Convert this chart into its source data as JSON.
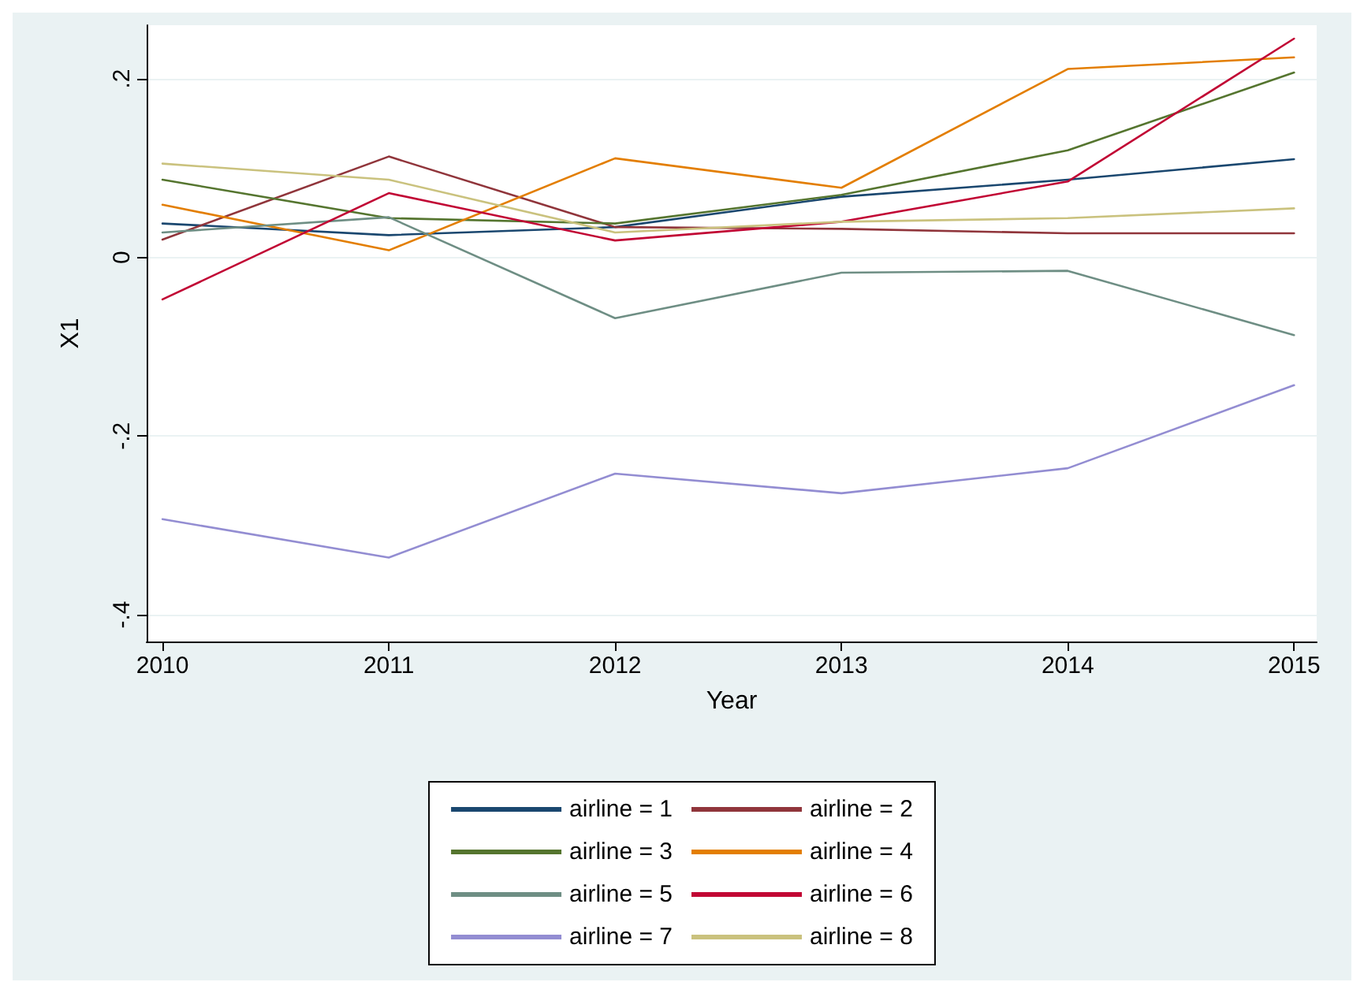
{
  "chart_data": {
    "type": "line",
    "xlabel": "Year",
    "ylabel": "X1",
    "x": [
      2010,
      2011,
      2012,
      2013,
      2014,
      2015
    ],
    "xlim": [
      2009.93,
      2015.1
    ],
    "xticks": [
      2010,
      2011,
      2012,
      2013,
      2014,
      2015
    ],
    "ylim": [
      -0.43,
      0.26
    ],
    "yticks": [
      {
        "value": 0.2,
        "label": ".2"
      },
      {
        "value": 0,
        "label": "0"
      },
      {
        "value": -0.2,
        "label": "-.2"
      },
      {
        "value": -0.4,
        "label": "-.4"
      }
    ],
    "grid": "y",
    "legend": "bottom",
    "marker": "none",
    "line_style": "solid",
    "series": [
      {
        "name": "airline = 1",
        "color": "#1a476f",
        "values": [
          0.038,
          0.025,
          0.034,
          0.068,
          0.087,
          0.11
        ]
      },
      {
        "name": "airline = 2",
        "color": "#90353b",
        "values": [
          0.02,
          0.113,
          0.034,
          0.032,
          0.027,
          0.027
        ]
      },
      {
        "name": "airline = 3",
        "color": "#55752f",
        "values": [
          0.087,
          0.044,
          0.038,
          0.07,
          0.12,
          0.207
        ]
      },
      {
        "name": "airline = 4",
        "color": "#e37e00",
        "values": [
          0.059,
          0.008,
          0.111,
          0.078,
          0.211,
          0.224
        ]
      },
      {
        "name": "airline = 5",
        "color": "#6e8e84",
        "values": [
          0.028,
          0.045,
          -0.068,
          -0.017,
          -0.015,
          -0.087
        ]
      },
      {
        "name": "airline = 6",
        "color": "#c10534",
        "values": [
          -0.047,
          0.072,
          0.019,
          0.04,
          0.085,
          0.245
        ]
      },
      {
        "name": "airline = 7",
        "color": "#938dd2",
        "values": [
          -0.293,
          -0.336,
          -0.242,
          -0.264,
          -0.236,
          -0.143
        ]
      },
      {
        "name": "airline = 8",
        "color": "#cac27e",
        "values": [
          0.105,
          0.087,
          0.028,
          0.04,
          0.044,
          0.055
        ]
      }
    ]
  }
}
